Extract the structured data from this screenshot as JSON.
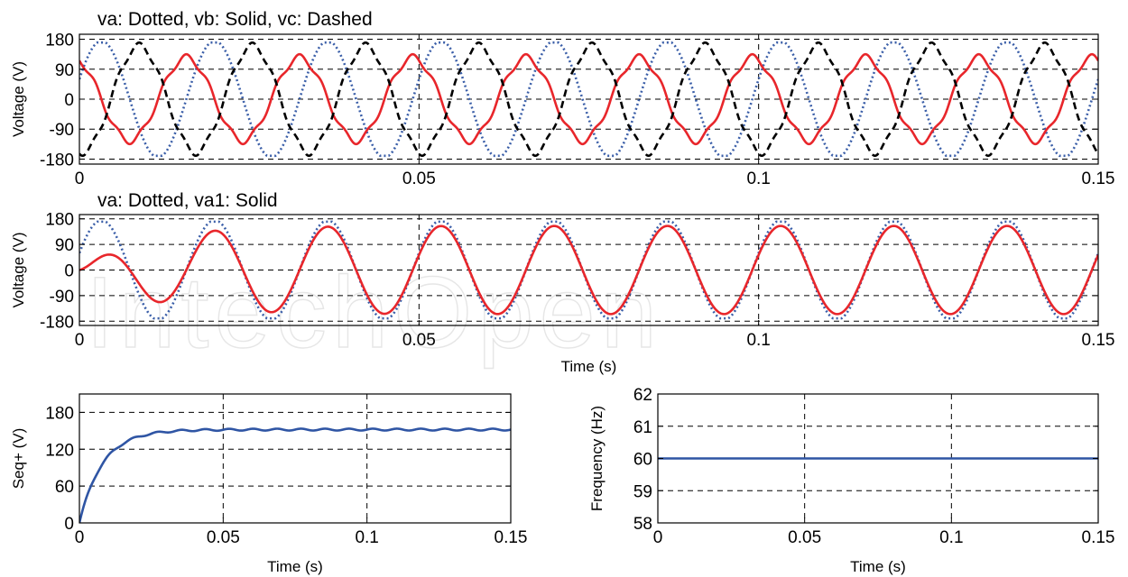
{
  "watermark": "IntechOpen",
  "chart_data": [
    {
      "type": "line",
      "title": "va: Dotted, vb: Solid, vc: Dashed",
      "xlabel": "",
      "ylabel": "Voltage (V)",
      "xlim": [
        0,
        0.15
      ],
      "ylim": [
        -195,
        195
      ],
      "xticks": [
        0,
        0.05,
        0.1,
        0.15
      ],
      "xtick_labels": [
        "0",
        "0.05",
        "0.1",
        "0.15"
      ],
      "yticks": [
        180,
        90,
        0,
        -90,
        -180
      ],
      "ytick_labels": [
        "180",
        "90",
        "0",
        "-90",
        "-180"
      ],
      "grid": "dashed-horizontal",
      "series": [
        {
          "style": "dotted",
          "color": "#3a5ea8",
          "frequency_hz": 60,
          "amplitude": 175,
          "clip": 170,
          "phase_deg": 20
        },
        {
          "style": "solid",
          "color": "#e8262b",
          "frequency_hz": 60,
          "amplitude": 125,
          "phase_deg": 110,
          "harmonic_5_amp": 10
        },
        {
          "style": "dashed",
          "color": "#000000",
          "frequency_hz": 60,
          "amplitude": 160,
          "phase_deg": -100,
          "harmonic_5_amp": 10
        }
      ]
    },
    {
      "type": "line",
      "title": "va: Dotted, va1: Solid",
      "xlabel": "Time (s)",
      "ylabel": "Voltage (V)",
      "xlim": [
        0,
        0.15
      ],
      "ylim": [
        -195,
        195
      ],
      "xticks": [
        0,
        0.05,
        0.1,
        0.15
      ],
      "xtick_labels": [
        "0",
        "0.05",
        "0.1",
        "0.15"
      ],
      "yticks": [
        180,
        90,
        0,
        -90,
        -180
      ],
      "ytick_labels": [
        "180",
        "90",
        "0",
        "-90",
        "-180"
      ],
      "grid": "dashed-horizontal",
      "series": [
        {
          "style": "dotted",
          "color": "#3a5ea8",
          "frequency_hz": 60,
          "amplitude": 175,
          "clip": 170,
          "phase_deg": 20
        },
        {
          "style": "solid",
          "color": "#e8262b",
          "frequency_hz": 60,
          "amplitude": 155,
          "phase_deg": 20,
          "settling_tau_s": 0.009
        }
      ]
    },
    {
      "type": "line",
      "title": "",
      "xlabel": "Time (s)",
      "ylabel": "Seq+ (V)",
      "xlim": [
        0,
        0.15
      ],
      "ylim": [
        0,
        210
      ],
      "xticks": [
        0,
        0.05,
        0.1,
        0.15
      ],
      "xtick_labels": [
        "0",
        "0.05",
        "0.1",
        "0.15"
      ],
      "yticks": [
        180,
        120,
        60,
        0
      ],
      "ytick_labels": [
        "180",
        "120",
        "60",
        "0"
      ],
      "grid": "dashed-horizontal",
      "series": [
        {
          "style": "solid",
          "color": "#2f55a4",
          "final_value": 152,
          "settling_tau_s": 0.008,
          "ripple": 1.5
        }
      ]
    },
    {
      "type": "line",
      "title": "",
      "xlabel": "Time (s)",
      "ylabel": "Frequency (Hz)",
      "xlim": [
        0,
        0.15
      ],
      "ylim": [
        58,
        62
      ],
      "xticks": [
        0,
        0.05,
        0.1,
        0.15
      ],
      "xtick_labels": [
        "0",
        "0.05",
        "0.1",
        "0.15"
      ],
      "yticks": [
        62,
        61,
        60,
        59,
        58
      ],
      "ytick_labels": [
        "62",
        "61",
        "60",
        "59",
        "58"
      ],
      "grid": "dashed-horizontal",
      "series": [
        {
          "style": "solid",
          "color": "#2f55a4",
          "constant_value": 60
        }
      ]
    }
  ]
}
